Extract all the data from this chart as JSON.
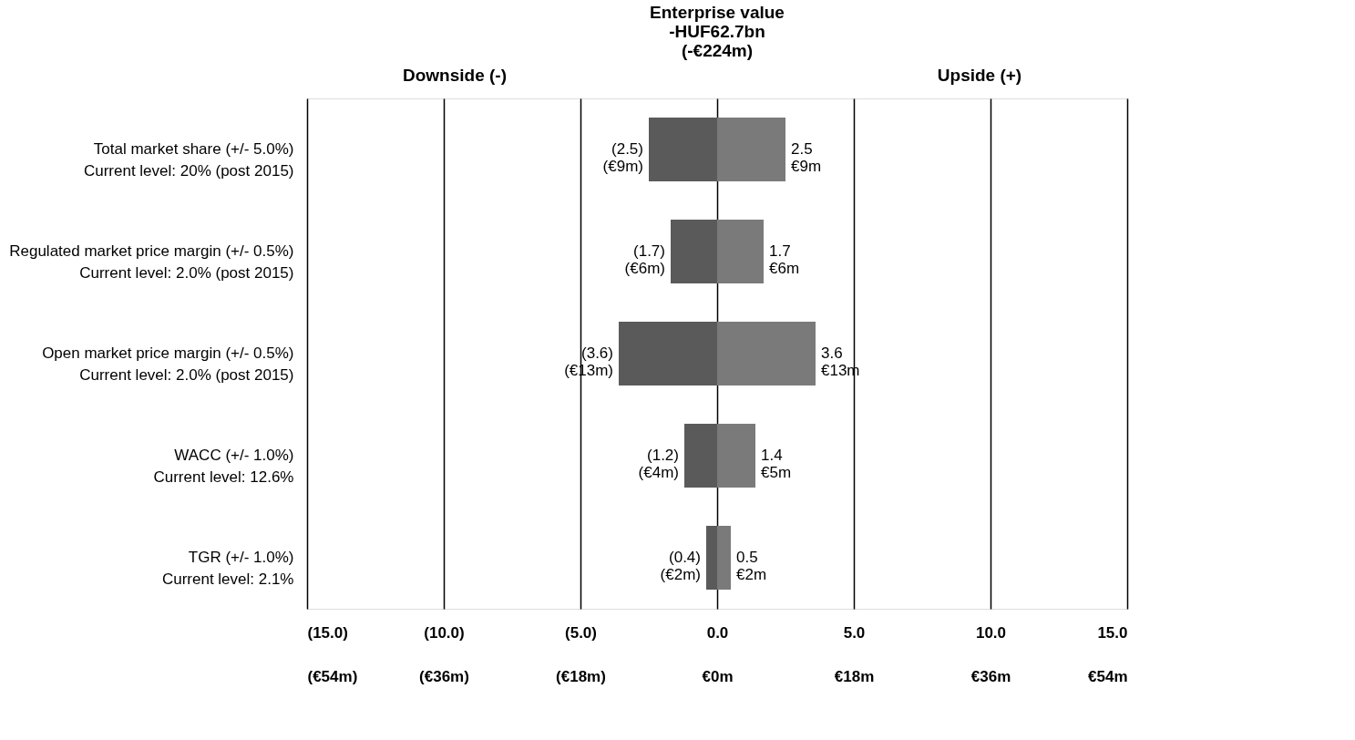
{
  "chart_data": {
    "type": "bar",
    "orientation": "horizontal",
    "stacked": true,
    "title": "Enterprise value\n-HUF62.7bn\n(-€224m)",
    "annotations": [
      "Downside (-)",
      "Upside (+)"
    ],
    "categories": [
      "Total market share (+/- 5.0%)\nCurrent level: 20% (post 2015)",
      "Regulated market  price margin (+/- 0.5%)\nCurrent level: 2.0% (post 2015)",
      "Open market  price margin (+/- 0.5%)\nCurrent level: 2.0% (post 2015)",
      "WACC (+/- 1.0%)\nCurrent level: 12.6%",
      "TGR (+/- 1.0%)\nCurrent level: 2.1%"
    ],
    "series": [
      {
        "color": "#5a5a5a",
        "values": [
          -2.5,
          -1.7,
          -3.6,
          -1.2,
          -0.4
        ],
        "value_labels": [
          "(2.5)\n(€9m)",
          "(1.7)\n(€6m)",
          "(3.6)\n(€13m)",
          "(1.2)\n(€4m)",
          "(0.4)\n(€2m)"
        ]
      },
      {
        "color": "#7a7a7a",
        "values": [
          2.5,
          1.7,
          3.6,
          1.4,
          0.5
        ],
        "value_labels": [
          "2.5\n€9m",
          "1.7\n€6m",
          "3.6\n€13m",
          "1.4\n€5m",
          "0.5\n€2m"
        ]
      }
    ],
    "xlim": [
      -15,
      15
    ],
    "xticks": [
      {
        "value": -15,
        "label": "(15.0)"
      },
      {
        "value": -10,
        "label": "(10.0)"
      },
      {
        "value": -5,
        "label": "(5.0)"
      },
      {
        "value": 0,
        "label": "0.0"
      },
      {
        "value": 5,
        "label": "5.0"
      },
      {
        "value": 10,
        "label": "10.0"
      },
      {
        "value": 15,
        "label": "15.0"
      }
    ],
    "x2lim": [
      -54,
      54
    ],
    "x2ticks": [
      {
        "value": -54,
        "label": "(€54m)"
      },
      {
        "value": -36,
        "label": "(€36m)"
      },
      {
        "value": -18,
        "label": "(€18m)"
      },
      {
        "value": 0,
        "label": "€0m"
      },
      {
        "value": 18,
        "label": "€18m"
      },
      {
        "value": 36,
        "label": "€36m"
      },
      {
        "value": 54,
        "label": "€54m"
      }
    ],
    "grid": "x"
  }
}
